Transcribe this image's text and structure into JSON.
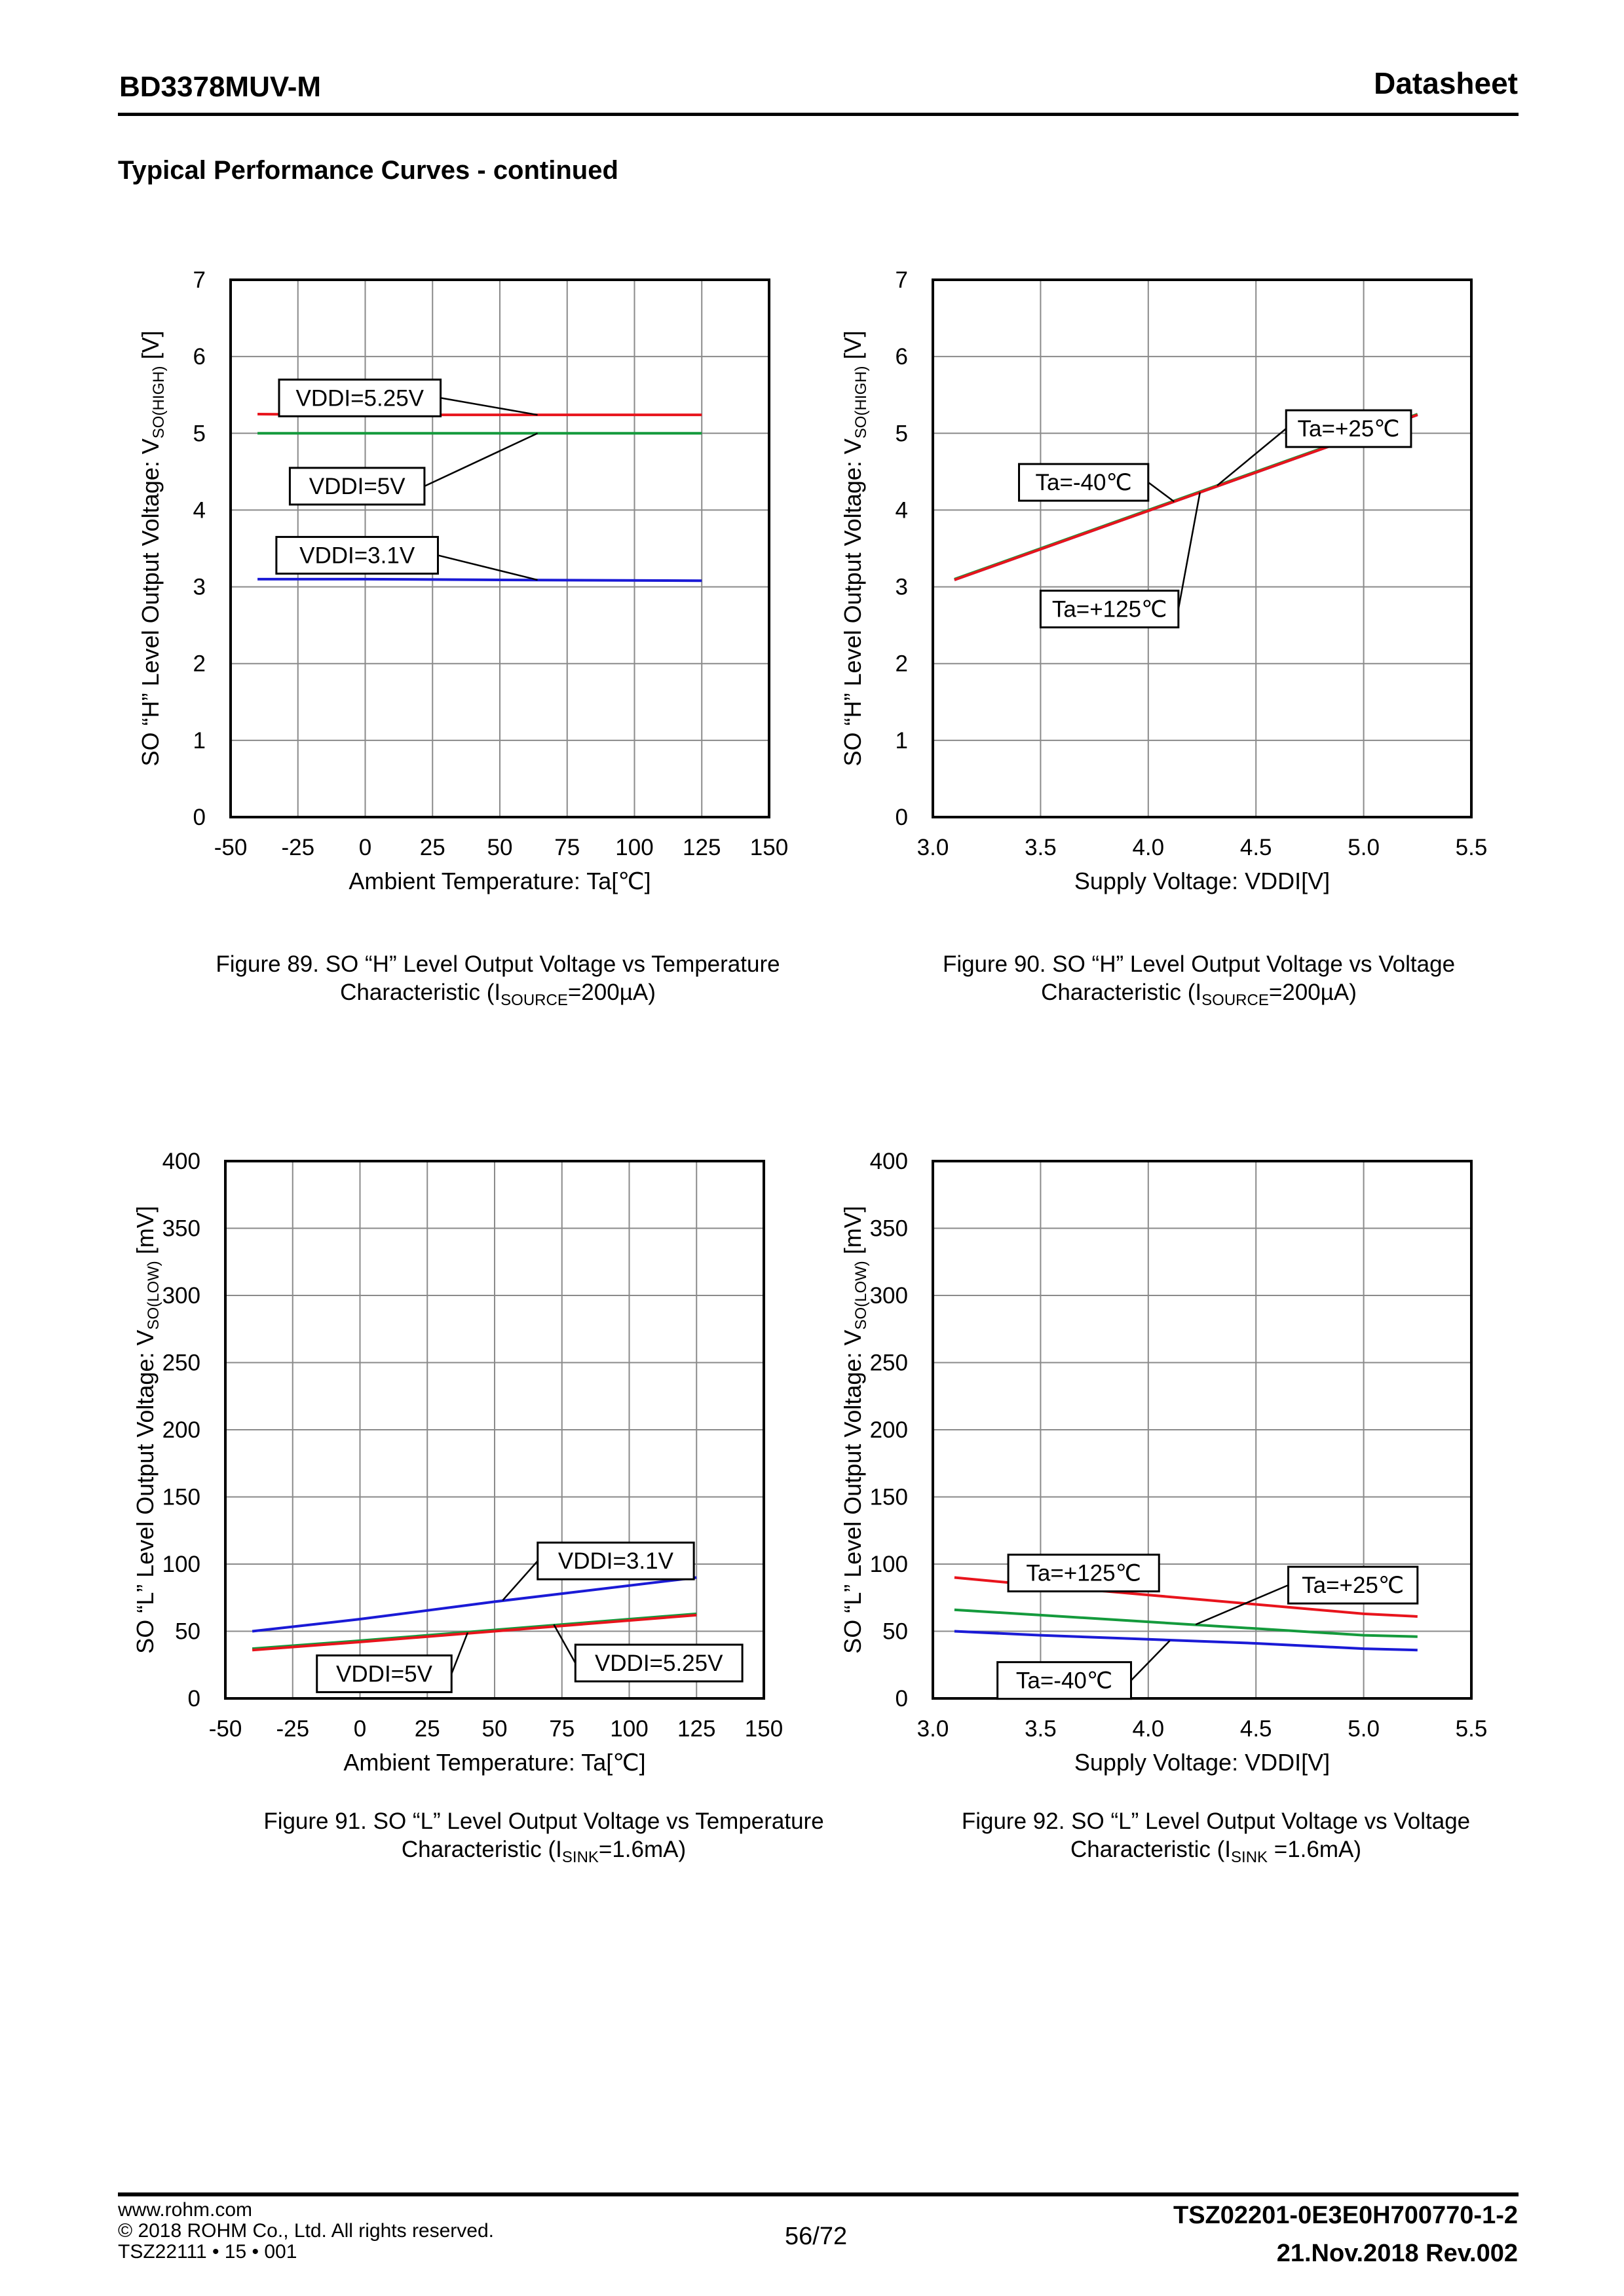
{
  "header": {
    "part_number": "BD3378MUV-M",
    "doc_type": "Datasheet",
    "section_title": "Typical Performance Curves - continued"
  },
  "colors": {
    "red": "#e8141c",
    "green": "#149a3c",
    "blue": "#1a1ad6",
    "grid": "#8a8a8a"
  },
  "chart_data": [
    {
      "type": "line",
      "figure": "89",
      "title": "Figure 89. SO “H” Level Output Voltage vs Temperature",
      "caption_line2_pre": "Characteristic (I",
      "caption_sub": "SOURCE",
      "caption_post": "=200µA)",
      "xlabel": "Ambient Temperature: Ta[℃]",
      "ylabel_pre": "SO “H” Level Output Voltage: V",
      "ylabel_sub": "SO(HIGH)",
      "ylabel_post": " [V]",
      "xlim": [
        -50,
        150
      ],
      "ylim": [
        0,
        7
      ],
      "xticks": [
        -50,
        -25,
        0,
        25,
        50,
        75,
        100,
        125,
        150
      ],
      "yticks": [
        0,
        1,
        2,
        3,
        4,
        5,
        6,
        7
      ],
      "xtick_labels": [
        "-50",
        "-25",
        "0",
        "25",
        "50",
        "75",
        "100",
        "125",
        "150"
      ],
      "ytick_labels": [
        "0",
        "1",
        "2",
        "3",
        "4",
        "5",
        "6",
        "7"
      ],
      "series": [
        {
          "name": "VDDI=5.25V",
          "color": "red",
          "x": [
            -40,
            0,
            50,
            125
          ],
          "y": [
            5.25,
            5.24,
            5.24,
            5.24
          ]
        },
        {
          "name": "VDDI=5V",
          "color": "green",
          "x": [
            -40,
            0,
            50,
            125
          ],
          "y": [
            5.0,
            5.0,
            5.0,
            5.0
          ]
        },
        {
          "name": "VDDI=3.1V",
          "color": "blue",
          "x": [
            -40,
            0,
            50,
            125
          ],
          "y": [
            3.1,
            3.1,
            3.09,
            3.08
          ]
        }
      ],
      "annotations": [
        {
          "text": "VDDI=5.25V",
          "bx": -32,
          "by": 5.7,
          "bw": 60,
          "ax": 64,
          "ay": 5.24
        },
        {
          "text": "VDDI=5V",
          "bx": -28,
          "by": 4.55,
          "bw": 50,
          "ax": 64,
          "ay": 5.0
        },
        {
          "text": "VDDI=3.1V",
          "bx": -33,
          "by": 3.65,
          "bw": 60,
          "ax": 64,
          "ay": 3.09
        }
      ]
    },
    {
      "type": "line",
      "figure": "90",
      "title": "Figure 90. SO “H” Level Output Voltage vs Voltage",
      "caption_line2_pre": "Characteristic (I",
      "caption_sub": "SOURCE",
      "caption_post": "=200µA)",
      "xlabel": "Supply Voltage: VDDI[V]",
      "ylabel_pre": "SO “H” Level Output Voltage: V",
      "ylabel_sub": "SO(HIGH)",
      "ylabel_post": " [V]",
      "xlim": [
        3.0,
        5.5
      ],
      "ylim": [
        0,
        7
      ],
      "xticks": [
        3.0,
        3.5,
        4.0,
        4.5,
        5.0,
        5.5
      ],
      "yticks": [
        0,
        1,
        2,
        3,
        4,
        5,
        6,
        7
      ],
      "xtick_labels": [
        "3.0",
        "3.5",
        "4.0",
        "4.5",
        "5.0",
        "5.5"
      ],
      "ytick_labels": [
        "0",
        "1",
        "2",
        "3",
        "4",
        "5",
        "6",
        "7"
      ],
      "series": [
        {
          "name": "Ta=-40℃",
          "color": "blue",
          "x": [
            3.1,
            5.25
          ],
          "y": [
            3.09,
            5.24
          ]
        },
        {
          "name": "Ta=+25℃",
          "color": "green",
          "x": [
            3.1,
            5.25
          ],
          "y": [
            3.1,
            5.25
          ]
        },
        {
          "name": "Ta=+125℃",
          "color": "red",
          "x": [
            3.1,
            5.25
          ],
          "y": [
            3.09,
            5.24
          ]
        }
      ],
      "annotations": [
        {
          "text": "Ta=+25℃",
          "bx": 4.64,
          "by": 5.3,
          "bw": 0.58,
          "ax": 4.32,
          "ay": 4.32
        },
        {
          "text": "Ta=-40℃",
          "bx": 3.4,
          "by": 4.6,
          "bw": 0.6,
          "ax": 4.12,
          "ay": 4.11
        },
        {
          "text": "Ta=+125℃",
          "bx": 3.5,
          "by": 2.95,
          "bw": 0.64,
          "ax": 4.24,
          "ay": 4.23
        }
      ]
    },
    {
      "type": "line",
      "figure": "91",
      "title": "Figure 91. SO “L” Level Output Voltage vs Temperature",
      "caption_line2_pre": "Characteristic (I",
      "caption_sub": "SINK",
      "caption_post": "=1.6mA)",
      "xlabel": "Ambient Temperature: Ta[℃]",
      "ylabel_pre": "SO “L” Level Output Voltage: V",
      "ylabel_sub": "SO(LOW)",
      "ylabel_post": " [mV]",
      "xlim": [
        -50,
        150
      ],
      "ylim": [
        0,
        400
      ],
      "xticks": [
        -50,
        -25,
        0,
        25,
        50,
        75,
        100,
        125,
        150
      ],
      "yticks": [
        0,
        50,
        100,
        150,
        200,
        250,
        300,
        350,
        400
      ],
      "xtick_labels": [
        "-50",
        "-25",
        "0",
        "25",
        "50",
        "75",
        "100",
        "125",
        "150"
      ],
      "ytick_labels": [
        "0",
        "50",
        "100",
        "150",
        "200",
        "250",
        "300",
        "350",
        "400"
      ],
      "series": [
        {
          "name": "VDDI=3.1V",
          "color": "blue",
          "x": [
            -40,
            0,
            50,
            125
          ],
          "y": [
            50,
            59,
            72,
            90
          ]
        },
        {
          "name": "VDDI=5V",
          "color": "green",
          "x": [
            -40,
            0,
            50,
            125
          ],
          "y": [
            37,
            43,
            51,
            63
          ]
        },
        {
          "name": "VDDI=5.25V",
          "color": "red",
          "x": [
            -40,
            0,
            50,
            125
          ],
          "y": [
            36,
            42,
            50,
            62
          ]
        }
      ],
      "annotations": [
        {
          "text": "VDDI=3.1V",
          "bx": 66,
          "by": 116,
          "bw": 58,
          "ax": 53,
          "ay": 73
        },
        {
          "text": "VDDI=5V",
          "bx": -16,
          "by": 32,
          "bw": 50,
          "ax": 40,
          "ay": 49
        },
        {
          "text": "VDDI=5.25V",
          "bx": 80,
          "by": 40,
          "bw": 62,
          "ax": 72,
          "ay": 55
        }
      ]
    },
    {
      "type": "line",
      "figure": "92",
      "title": "Figure 92. SO “L” Level Output Voltage vs Voltage",
      "caption_line2_pre": "Characteristic (I",
      "caption_sub": "SINK",
      "caption_post": " =1.6mA)",
      "xlabel": "Supply Voltage: VDDI[V]",
      "ylabel_pre": "SO “L” Level Output Voltage: V",
      "ylabel_sub": "SO(LOW)",
      "ylabel_post": " [mV]",
      "xlim": [
        3.0,
        5.5
      ],
      "ylim": [
        0,
        400
      ],
      "xticks": [
        3.0,
        3.5,
        4.0,
        4.5,
        5.0,
        5.5
      ],
      "yticks": [
        0,
        50,
        100,
        150,
        200,
        250,
        300,
        350,
        400
      ],
      "xtick_labels": [
        "3.0",
        "3.5",
        "4.0",
        "4.5",
        "5.0",
        "5.5"
      ],
      "ytick_labels": [
        "0",
        "50",
        "100",
        "150",
        "200",
        "250",
        "300",
        "350",
        "400"
      ],
      "series": [
        {
          "name": "Ta=+125℃",
          "color": "red",
          "x": [
            3.1,
            3.5,
            4.0,
            4.5,
            5.0,
            5.25
          ],
          "y": [
            90,
            84,
            77,
            70,
            63,
            61
          ]
        },
        {
          "name": "Ta=+25℃",
          "color": "green",
          "x": [
            3.1,
            3.5,
            4.0,
            4.5,
            5.0,
            5.25
          ],
          "y": [
            66,
            62,
            57,
            52,
            47,
            46
          ]
        },
        {
          "name": "Ta=-40℃",
          "color": "blue",
          "x": [
            3.1,
            3.5,
            4.0,
            4.5,
            5.0,
            5.25
          ],
          "y": [
            50,
            47,
            44,
            41,
            37,
            36
          ]
        }
      ],
      "annotations": [
        {
          "text": "Ta=+125℃",
          "bx": 3.35,
          "by": 107,
          "bw": 0.7,
          "ax": 3.6,
          "ay": 83
        },
        {
          "text": "Ta=+25℃",
          "bx": 4.65,
          "by": 98,
          "bw": 0.6,
          "ax": 4.22,
          "ay": 55
        },
        {
          "text": "Ta=-40℃",
          "bx": 3.3,
          "by": 27,
          "bw": 0.62,
          "ax": 4.1,
          "ay": 43
        }
      ]
    }
  ],
  "footer": {
    "website": "www.rohm.com",
    "copyright": "© 2018 ROHM Co., Ltd. All rights reserved.",
    "form_code": "TSZ22111 • 15 • 001",
    "page": "56/72",
    "doc_code": "TSZ02201-0E3E0H700770-1-2",
    "date_rev": "21.Nov.2018 Rev.002"
  }
}
